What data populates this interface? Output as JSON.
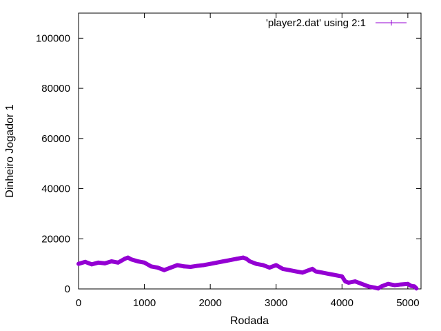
{
  "chart_data": {
    "type": "line",
    "xlabel": "Rodada",
    "ylabel": "Dinheiro Jogador 1",
    "xlim": [
      0,
      5200
    ],
    "ylim": [
      0,
      110000
    ],
    "x_ticks": [
      0,
      1000,
      2000,
      3000,
      4000,
      5000
    ],
    "x_tick_labels": [
      "0",
      "1000",
      "2000",
      "3000",
      "4000",
      "5000"
    ],
    "y_ticks": [
      0,
      20000,
      40000,
      60000,
      80000,
      100000
    ],
    "y_tick_labels": [
      "0",
      "20000",
      "40000",
      "60000",
      "80000",
      "100000"
    ],
    "grid": false,
    "legend_position": "top-right",
    "series": [
      {
        "name": "'player2.dat' using 2:1",
        "color": "#9400d3",
        "marker": "plus",
        "x": [
          0,
          100,
          200,
          300,
          400,
          500,
          600,
          700,
          750,
          800,
          900,
          1000,
          1100,
          1200,
          1300,
          1400,
          1500,
          1600,
          1700,
          1800,
          1900,
          2000,
          2100,
          2200,
          2300,
          2400,
          2500,
          2550,
          2600,
          2700,
          2800,
          2900,
          3000,
          3100,
          3200,
          3300,
          3400,
          3500,
          3550,
          3600,
          3700,
          3800,
          3900,
          4000,
          4050,
          4100,
          4200,
          4300,
          4400,
          4500,
          4550,
          4600,
          4700,
          4800,
          4900,
          5000,
          5050,
          5100,
          5130
        ],
        "y": [
          10000,
          10800,
          9800,
          10500,
          10200,
          11000,
          10500,
          12000,
          12500,
          11800,
          11000,
          10500,
          9000,
          8500,
          7500,
          8500,
          9500,
          9000,
          8800,
          9200,
          9500,
          10000,
          10500,
          11000,
          11500,
          12000,
          12500,
          12000,
          11000,
          10000,
          9500,
          8500,
          9500,
          8000,
          7500,
          7000,
          6500,
          7500,
          8000,
          7000,
          6500,
          6000,
          5500,
          5000,
          3000,
          2500,
          3000,
          2000,
          1000,
          500,
          200,
          1000,
          2000,
          1500,
          1800,
          2000,
          1200,
          1000,
          200
        ]
      }
    ]
  }
}
